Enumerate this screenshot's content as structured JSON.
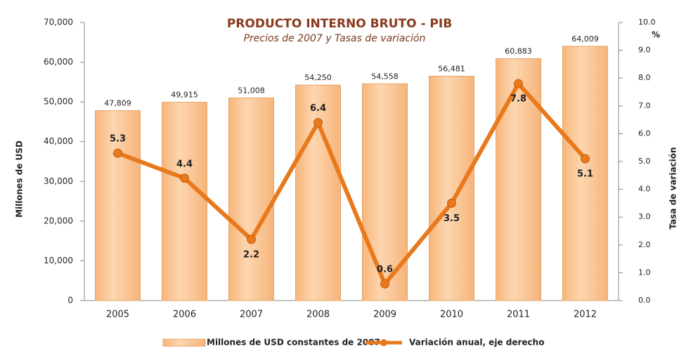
{
  "chart_data": {
    "type": "combo",
    "title": "PRODUCTO INTERNO BRUTO - PIB",
    "subtitle": "Precios de 2007 y Tasas de variación",
    "y_label": "Millones de USD",
    "y2_label": "Tasa de variación",
    "y2_unit": "%",
    "categories": [
      "2005",
      "2006",
      "2007",
      "2008",
      "2009",
      "2010",
      "2011",
      "2012"
    ],
    "series": [
      {
        "name": "Millones de USD constantes de 2007",
        "type": "bar",
        "color": "#fbc795",
        "values": [
          47809,
          49915,
          51008,
          54250,
          54558,
          56481,
          60883,
          64009
        ],
        "value_labels": [
          "47,809",
          "49,915",
          "51,008",
          "54,250",
          "54,558",
          "56,481",
          "60,883",
          "64,009"
        ]
      },
      {
        "name": "Variación anual, eje derecho",
        "type": "line",
        "color": "#e8791c",
        "axis": "y2",
        "values": [
          5.3,
          4.4,
          2.2,
          6.4,
          0.6,
          3.5,
          7.8,
          5.1
        ]
      }
    ],
    "ylim": [
      0,
      70000
    ],
    "yticks": [
      0,
      {
        "value": 10000,
        "label": "10,000"
      },
      {
        "value": 20000,
        "label": "20,000"
      },
      {
        "value": 30000,
        "label": "30,000"
      },
      {
        "value": 40000,
        "label": "40,000"
      },
      {
        "value": 50000,
        "label": "50,000"
      },
      {
        "value": 60000,
        "label": "60,000"
      },
      {
        "value": 70000,
        "label": "70,000"
      }
    ],
    "y2lim": [
      0,
      10
    ],
    "y2ticks": [
      {
        "value": 0,
        "label": "0.0"
      },
      {
        "value": 1,
        "label": "1.0"
      },
      {
        "value": 2,
        "label": "2.0"
      },
      {
        "value": 3,
        "label": "3.0"
      },
      {
        "value": 4,
        "label": "4.0"
      },
      {
        "value": 5,
        "label": "5.0"
      },
      {
        "value": 6,
        "label": "6.0"
      },
      {
        "value": 7,
        "label": "7.0"
      },
      {
        "value": 8,
        "label": "8.0"
      },
      {
        "value": 9,
        "label": "9.0"
      },
      {
        "value": 10,
        "label": "10.0"
      }
    ]
  }
}
